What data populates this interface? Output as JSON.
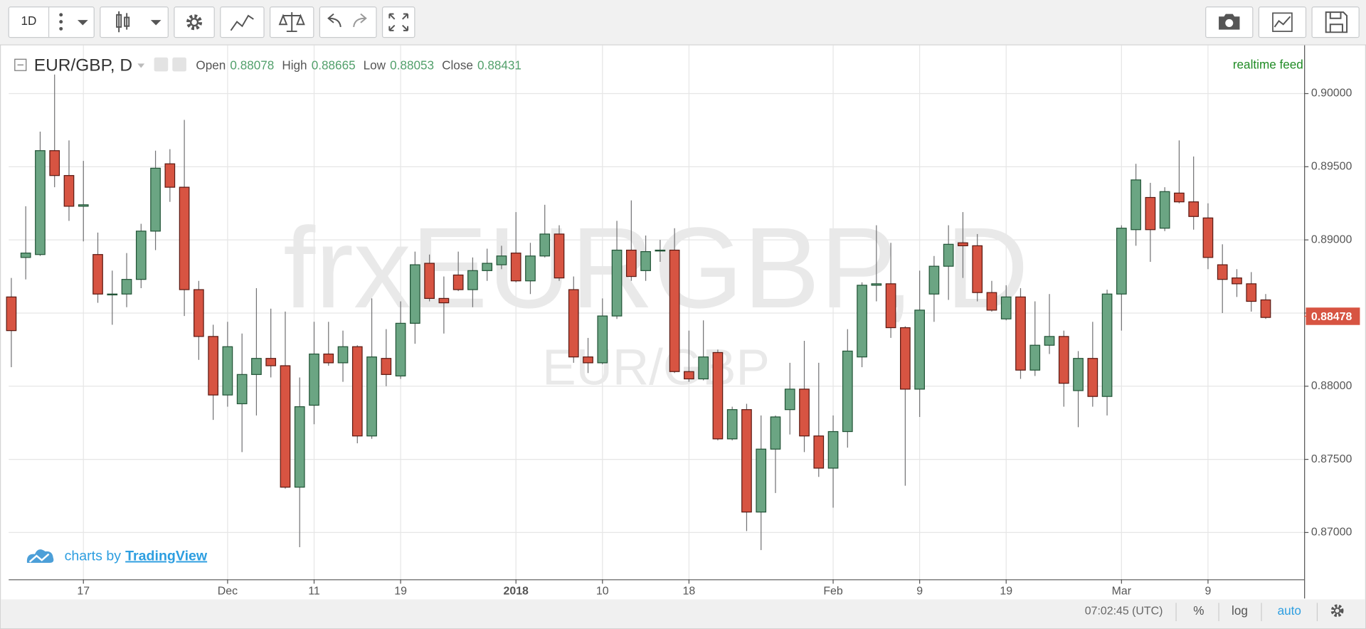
{
  "toolbar": {
    "interval": "1D"
  },
  "chart_data": {
    "type": "candlestick",
    "symbol_title": "EUR/GBP, D",
    "legend": [
      {
        "label": "Open",
        "value": 0.88078
      },
      {
        "label": "High",
        "value": 0.88665
      },
      {
        "label": "Low",
        "value": 0.88053
      },
      {
        "label": "Close",
        "value": 0.88431
      }
    ],
    "watermark": "frxEURGBP, D",
    "watermark_sub": "EUR/GBP",
    "feed": "realtime feed",
    "branding_prefix": "charts by",
    "branding": "TradingView",
    "categories": [
      null,
      null,
      null,
      null,
      null,
      "17",
      null,
      null,
      null,
      null,
      null,
      null,
      null,
      null,
      null,
      "Dec",
      null,
      null,
      null,
      null,
      null,
      "11",
      null,
      null,
      null,
      null,
      null,
      "19",
      null,
      null,
      null,
      null,
      null,
      null,
      null,
      "2018",
      null,
      null,
      null,
      null,
      null,
      "10",
      null,
      null,
      null,
      null,
      null,
      "18",
      null,
      null,
      null,
      null,
      null,
      null,
      null,
      null,
      null,
      "Feb",
      null,
      null,
      null,
      null,
      null,
      "9",
      null,
      null,
      null,
      null,
      null,
      "19",
      null,
      null,
      null,
      null,
      null,
      null,
      null,
      "Mar",
      null,
      null,
      null,
      null,
      null,
      "9",
      null,
      null,
      null,
      null
    ],
    "open": [
      0.8861,
      0.8888,
      0.889,
      0.8961,
      0.8944,
      0.8923,
      0.889,
      0.8863,
      0.8863,
      0.8873,
      0.8906,
      0.8952,
      0.8936,
      0.8866,
      0.8834,
      0.8794,
      0.8788,
      0.8808,
      0.8819,
      0.8814,
      0.8731,
      0.8787,
      0.8822,
      0.8816,
      0.8827,
      0.8766,
      0.8819,
      0.8807,
      0.8843,
      0.8884,
      0.886,
      0.8876,
      0.8866,
      0.8879,
      0.8883,
      0.8891,
      0.8872,
      0.8889,
      0.8904,
      0.8866,
      0.882,
      0.8816,
      0.8848,
      0.8893,
      0.8879,
      0.8893,
      0.8893,
      0.881,
      0.8805,
      0.8823,
      0.8764,
      0.8784,
      0.8714,
      0.8757,
      0.8784,
      0.8798,
      0.8766,
      0.8744,
      0.8769,
      0.882,
      0.8869,
      0.887,
      0.884,
      0.8798,
      0.8863,
      0.8882,
      0.8898,
      0.8896,
      0.8864,
      0.8846,
      0.8861,
      0.8811,
      0.8828,
      0.8834,
      0.8797,
      0.8819,
      0.8793,
      0.8863,
      0.8907,
      0.8929,
      0.8908,
      0.8932,
      0.8926,
      0.8915,
      0.8883,
      0.8874,
      0.887,
      0.8859
    ],
    "high": [
      0.8874,
      0.8923,
      0.8974,
      0.9013,
      0.8968,
      0.8954,
      0.8905,
      0.8879,
      0.8891,
      0.8911,
      0.8961,
      0.8962,
      0.8982,
      0.8872,
      0.8842,
      0.8844,
      0.8836,
      0.8867,
      0.8853,
      0.8851,
      0.8806,
      0.8844,
      0.8844,
      0.8838,
      0.8828,
      0.886,
      0.8839,
      0.8858,
      0.8892,
      0.889,
      0.8875,
      0.8892,
      0.8888,
      0.8894,
      0.8896,
      0.8919,
      0.8898,
      0.8924,
      0.891,
      0.8875,
      0.8833,
      0.886,
      0.8913,
      0.8927,
      0.8903,
      0.89,
      0.8908,
      0.8838,
      0.8845,
      0.8825,
      0.8786,
      0.8788,
      0.878,
      0.878,
      0.8816,
      0.8831,
      0.8816,
      0.878,
      0.8839,
      0.8871,
      0.891,
      0.8898,
      0.8841,
      0.8879,
      0.8889,
      0.891,
      0.8919,
      0.8904,
      0.8872,
      0.8869,
      0.8867,
      0.8858,
      0.8863,
      0.8838,
      0.8824,
      0.8844,
      0.8866,
      0.891,
      0.8952,
      0.8939,
      0.8936,
      0.8968,
      0.8957,
      0.8925,
      0.8897,
      0.888,
      0.8878,
      0.8863
    ],
    "low": [
      0.8813,
      0.8873,
      0.8889,
      0.8936,
      0.8913,
      0.8899,
      0.8857,
      0.8842,
      0.8854,
      0.8867,
      0.8893,
      0.8926,
      0.8848,
      0.8818,
      0.8777,
      0.8786,
      0.8755,
      0.878,
      0.8806,
      0.873,
      0.869,
      0.8774,
      0.8814,
      0.8803,
      0.8761,
      0.8764,
      0.88,
      0.8805,
      0.8829,
      0.8858,
      0.8836,
      0.8865,
      0.8854,
      0.8872,
      0.888,
      0.8871,
      0.8863,
      0.8888,
      0.8872,
      0.8816,
      0.8809,
      0.8815,
      0.8846,
      0.8872,
      0.8872,
      0.8885,
      0.8809,
      0.8803,
      0.8804,
      0.8763,
      0.8763,
      0.8701,
      0.8688,
      0.8727,
      0.8767,
      0.8755,
      0.8738,
      0.8717,
      0.8758,
      0.8813,
      0.8858,
      0.8833,
      0.8732,
      0.8779,
      0.8844,
      0.8859,
      0.8874,
      0.8858,
      0.8851,
      0.8845,
      0.8805,
      0.8807,
      0.8822,
      0.8786,
      0.8772,
      0.8786,
      0.878,
      0.8838,
      0.8896,
      0.8885,
      0.8906,
      0.8925,
      0.8907,
      0.888,
      0.885,
      0.8861,
      0.8851,
      0.8846
    ],
    "close": [
      0.8838,
      0.8891,
      0.8961,
      0.8944,
      0.8923,
      0.8924,
      0.8863,
      0.8863,
      0.8873,
      0.8906,
      0.8949,
      0.8936,
      0.8866,
      0.8834,
      0.8794,
      0.8827,
      0.8808,
      0.8819,
      0.8814,
      0.8731,
      0.8786,
      0.8822,
      0.8816,
      0.8827,
      0.8766,
      0.882,
      0.8808,
      0.8843,
      0.8883,
      0.886,
      0.8857,
      0.8866,
      0.8879,
      0.8884,
      0.8889,
      0.8872,
      0.8889,
      0.8904,
      0.8874,
      0.882,
      0.8816,
      0.8848,
      0.8893,
      0.8875,
      0.8892,
      0.8893,
      0.881,
      0.8805,
      0.882,
      0.8764,
      0.8784,
      0.8714,
      0.8757,
      0.8779,
      0.8798,
      0.8766,
      0.8744,
      0.8769,
      0.8824,
      0.8869,
      0.887,
      0.884,
      0.8798,
      0.8852,
      0.8882,
      0.8897,
      0.8896,
      0.8864,
      0.8852,
      0.8861,
      0.8811,
      0.8828,
      0.8834,
      0.8802,
      0.8819,
      0.8793,
      0.8863,
      0.8908,
      0.8941,
      0.8907,
      0.8933,
      0.8926,
      0.8916,
      0.8888,
      0.8873,
      0.887,
      0.8858,
      0.8847
    ],
    "up_color": "#6ba583",
    "down_color": "#d75442",
    "ylim": [
      0.8668,
      0.9033
    ],
    "yticks": [
      {
        "value": 0.87,
        "label": "0.87000"
      },
      {
        "value": 0.875,
        "label": "0.87500"
      },
      {
        "value": 0.88,
        "label": "0.88000"
      },
      {
        "value": 0.885,
        "label": "0.88500"
      },
      {
        "value": 0.89,
        "label": "0.89000"
      },
      {
        "value": 0.895,
        "label": "0.89500"
      },
      {
        "value": 0.9,
        "label": "0.90000"
      }
    ],
    "grid": true,
    "last_price": 0.88478
  },
  "status_bar": {
    "time": "07:02:45 (UTC)",
    "percent": "%",
    "log": "log",
    "auto": "auto"
  }
}
